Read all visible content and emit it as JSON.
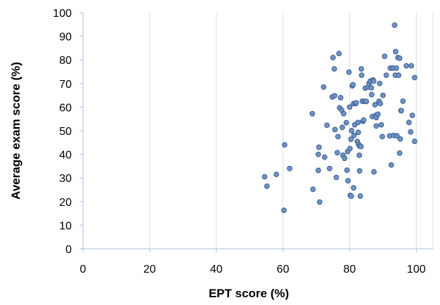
{
  "chart_data": {
    "type": "scatter",
    "title": "",
    "xlabel": "EPT score (%)",
    "ylabel": "Average exam score (%)",
    "xlim": [
      0,
      105
    ],
    "ylim": [
      0,
      100
    ],
    "x_ticks": [
      0,
      20,
      40,
      60,
      80,
      100
    ],
    "y_ticks": [
      0,
      10,
      20,
      30,
      40,
      50,
      60,
      70,
      80,
      90,
      100
    ],
    "x_tick_labels": [
      "0",
      "20",
      "40",
      "60",
      "80",
      "100"
    ],
    "y_tick_labels": [
      "0",
      "10",
      "20",
      "30",
      "40",
      "50",
      "60",
      "70",
      "80",
      "90",
      "100"
    ],
    "grid": {
      "vertical": true,
      "horizontal": false
    },
    "legend": "none",
    "colors": {
      "marker_fill": "#6f93c6",
      "marker_stroke": "#3d5f91",
      "grid": "#d9e1ee",
      "axis": "#aebfd8"
    },
    "points": [
      {
        "x": 54.5,
        "y": 30.5
      },
      {
        "x": 55.2,
        "y": 26.5
      },
      {
        "x": 58.0,
        "y": 31.5
      },
      {
        "x": 60.3,
        "y": 16.3
      },
      {
        "x": 60.5,
        "y": 44.0
      },
      {
        "x": 62.0,
        "y": 34.0
      },
      {
        "x": 68.8,
        "y": 57.2
      },
      {
        "x": 69.0,
        "y": 25.2
      },
      {
        "x": 70.6,
        "y": 40.0
      },
      {
        "x": 70.8,
        "y": 43.0
      },
      {
        "x": 70.6,
        "y": 33.2
      },
      {
        "x": 71.0,
        "y": 19.8
      },
      {
        "x": 72.2,
        "y": 68.5
      },
      {
        "x": 72.5,
        "y": 38.8
      },
      {
        "x": 73.2,
        "y": 52.3
      },
      {
        "x": 74.0,
        "y": 34.0
      },
      {
        "x": 74.8,
        "y": 64.3
      },
      {
        "x": 75.0,
        "y": 81.0
      },
      {
        "x": 75.4,
        "y": 76.2
      },
      {
        "x": 75.5,
        "y": 64.8
      },
      {
        "x": 75.6,
        "y": 50.5
      },
      {
        "x": 76.0,
        "y": 30.2
      },
      {
        "x": 76.3,
        "y": 40.7
      },
      {
        "x": 76.5,
        "y": 47.5
      },
      {
        "x": 76.8,
        "y": 82.7
      },
      {
        "x": 77.0,
        "y": 59.7
      },
      {
        "x": 77.3,
        "y": 64.0
      },
      {
        "x": 77.6,
        "y": 58.7
      },
      {
        "x": 77.8,
        "y": 51.4
      },
      {
        "x": 78.0,
        "y": 39.6
      },
      {
        "x": 78.2,
        "y": 57.2
      },
      {
        "x": 78.5,
        "y": 38.3
      },
      {
        "x": 79.0,
        "y": 53.4
      },
      {
        "x": 79.2,
        "y": 33.3
      },
      {
        "x": 79.4,
        "y": 41.2
      },
      {
        "x": 79.5,
        "y": 28.8
      },
      {
        "x": 79.8,
        "y": 74.8
      },
      {
        "x": 80.0,
        "y": 60.0
      },
      {
        "x": 80.1,
        "y": 42.4
      },
      {
        "x": 80.2,
        "y": 22.6
      },
      {
        "x": 80.4,
        "y": 46.4
      },
      {
        "x": 80.6,
        "y": 50.0
      },
      {
        "x": 80.5,
        "y": 22.3
      },
      {
        "x": 80.8,
        "y": 69.0
      },
      {
        "x": 81.0,
        "y": 69.5
      },
      {
        "x": 81.2,
        "y": 61.5
      },
      {
        "x": 81.3,
        "y": 48.0
      },
      {
        "x": 81.5,
        "y": 52.5
      },
      {
        "x": 81.2,
        "y": 25.8
      },
      {
        "x": 81.8,
        "y": 61.5
      },
      {
        "x": 82.0,
        "y": 61.8
      },
      {
        "x": 82.3,
        "y": 45.5
      },
      {
        "x": 82.5,
        "y": 53.5
      },
      {
        "x": 82.6,
        "y": 49.3
      },
      {
        "x": 82.7,
        "y": 44.2
      },
      {
        "x": 82.9,
        "y": 39.6
      },
      {
        "x": 83.0,
        "y": 43.5
      },
      {
        "x": 83.0,
        "y": 33.0
      },
      {
        "x": 83.2,
        "y": 22.3
      },
      {
        "x": 83.4,
        "y": 43.3
      },
      {
        "x": 83.5,
        "y": 76.2
      },
      {
        "x": 83.6,
        "y": 73.5
      },
      {
        "x": 83.8,
        "y": 62.5
      },
      {
        "x": 84.0,
        "y": 54.0
      },
      {
        "x": 84.2,
        "y": 54.5
      },
      {
        "x": 84.5,
        "y": 62.4
      },
      {
        "x": 84.7,
        "y": 68.0
      },
      {
        "x": 85.0,
        "y": 62.4
      },
      {
        "x": 85.6,
        "y": 68.5
      },
      {
        "x": 85.8,
        "y": 70.0
      },
      {
        "x": 86.2,
        "y": 71.0
      },
      {
        "x": 86.5,
        "y": 68.2
      },
      {
        "x": 86.6,
        "y": 65.3
      },
      {
        "x": 86.8,
        "y": 56.0
      },
      {
        "x": 87.0,
        "y": 71.5
      },
      {
        "x": 87.2,
        "y": 71.0
      },
      {
        "x": 87.3,
        "y": 32.6
      },
      {
        "x": 87.6,
        "y": 61.0
      },
      {
        "x": 87.8,
        "y": 56.5
      },
      {
        "x": 88.0,
        "y": 55.6
      },
      {
        "x": 88.0,
        "y": 52.0
      },
      {
        "x": 88.5,
        "y": 57.0
      },
      {
        "x": 88.8,
        "y": 62.5
      },
      {
        "x": 89.0,
        "y": 70.0
      },
      {
        "x": 89.2,
        "y": 61.5
      },
      {
        "x": 89.5,
        "y": 52.5
      },
      {
        "x": 89.8,
        "y": 47.5
      },
      {
        "x": 90.0,
        "y": 65.0
      },
      {
        "x": 90.5,
        "y": 81.5
      },
      {
        "x": 91.0,
        "y": 73.5
      },
      {
        "x": 92.0,
        "y": 47.8
      },
      {
        "x": 92.2,
        "y": 76.5
      },
      {
        "x": 92.5,
        "y": 35.5
      },
      {
        "x": 93.0,
        "y": 76.5
      },
      {
        "x": 93.2,
        "y": 48.0
      },
      {
        "x": 93.5,
        "y": 94.7
      },
      {
        "x": 93.7,
        "y": 73.5
      },
      {
        "x": 93.8,
        "y": 83.5
      },
      {
        "x": 94.0,
        "y": 76.5
      },
      {
        "x": 94.2,
        "y": 47.8
      },
      {
        "x": 94.5,
        "y": 81.0
      },
      {
        "x": 94.7,
        "y": 73.5
      },
      {
        "x": 95.0,
        "y": 80.7
      },
      {
        "x": 95.0,
        "y": 40.5
      },
      {
        "x": 95.2,
        "y": 46.5
      },
      {
        "x": 95.4,
        "y": 58.5
      },
      {
        "x": 95.5,
        "y": 58.5
      },
      {
        "x": 96.0,
        "y": 62.5
      },
      {
        "x": 97.0,
        "y": 77.5
      },
      {
        "x": 97.8,
        "y": 53.5
      },
      {
        "x": 98.3,
        "y": 49.5
      },
      {
        "x": 98.5,
        "y": 77.5
      },
      {
        "x": 98.8,
        "y": 56.5
      },
      {
        "x": 99.5,
        "y": 72.5
      },
      {
        "x": 99.5,
        "y": 45.5
      }
    ]
  }
}
